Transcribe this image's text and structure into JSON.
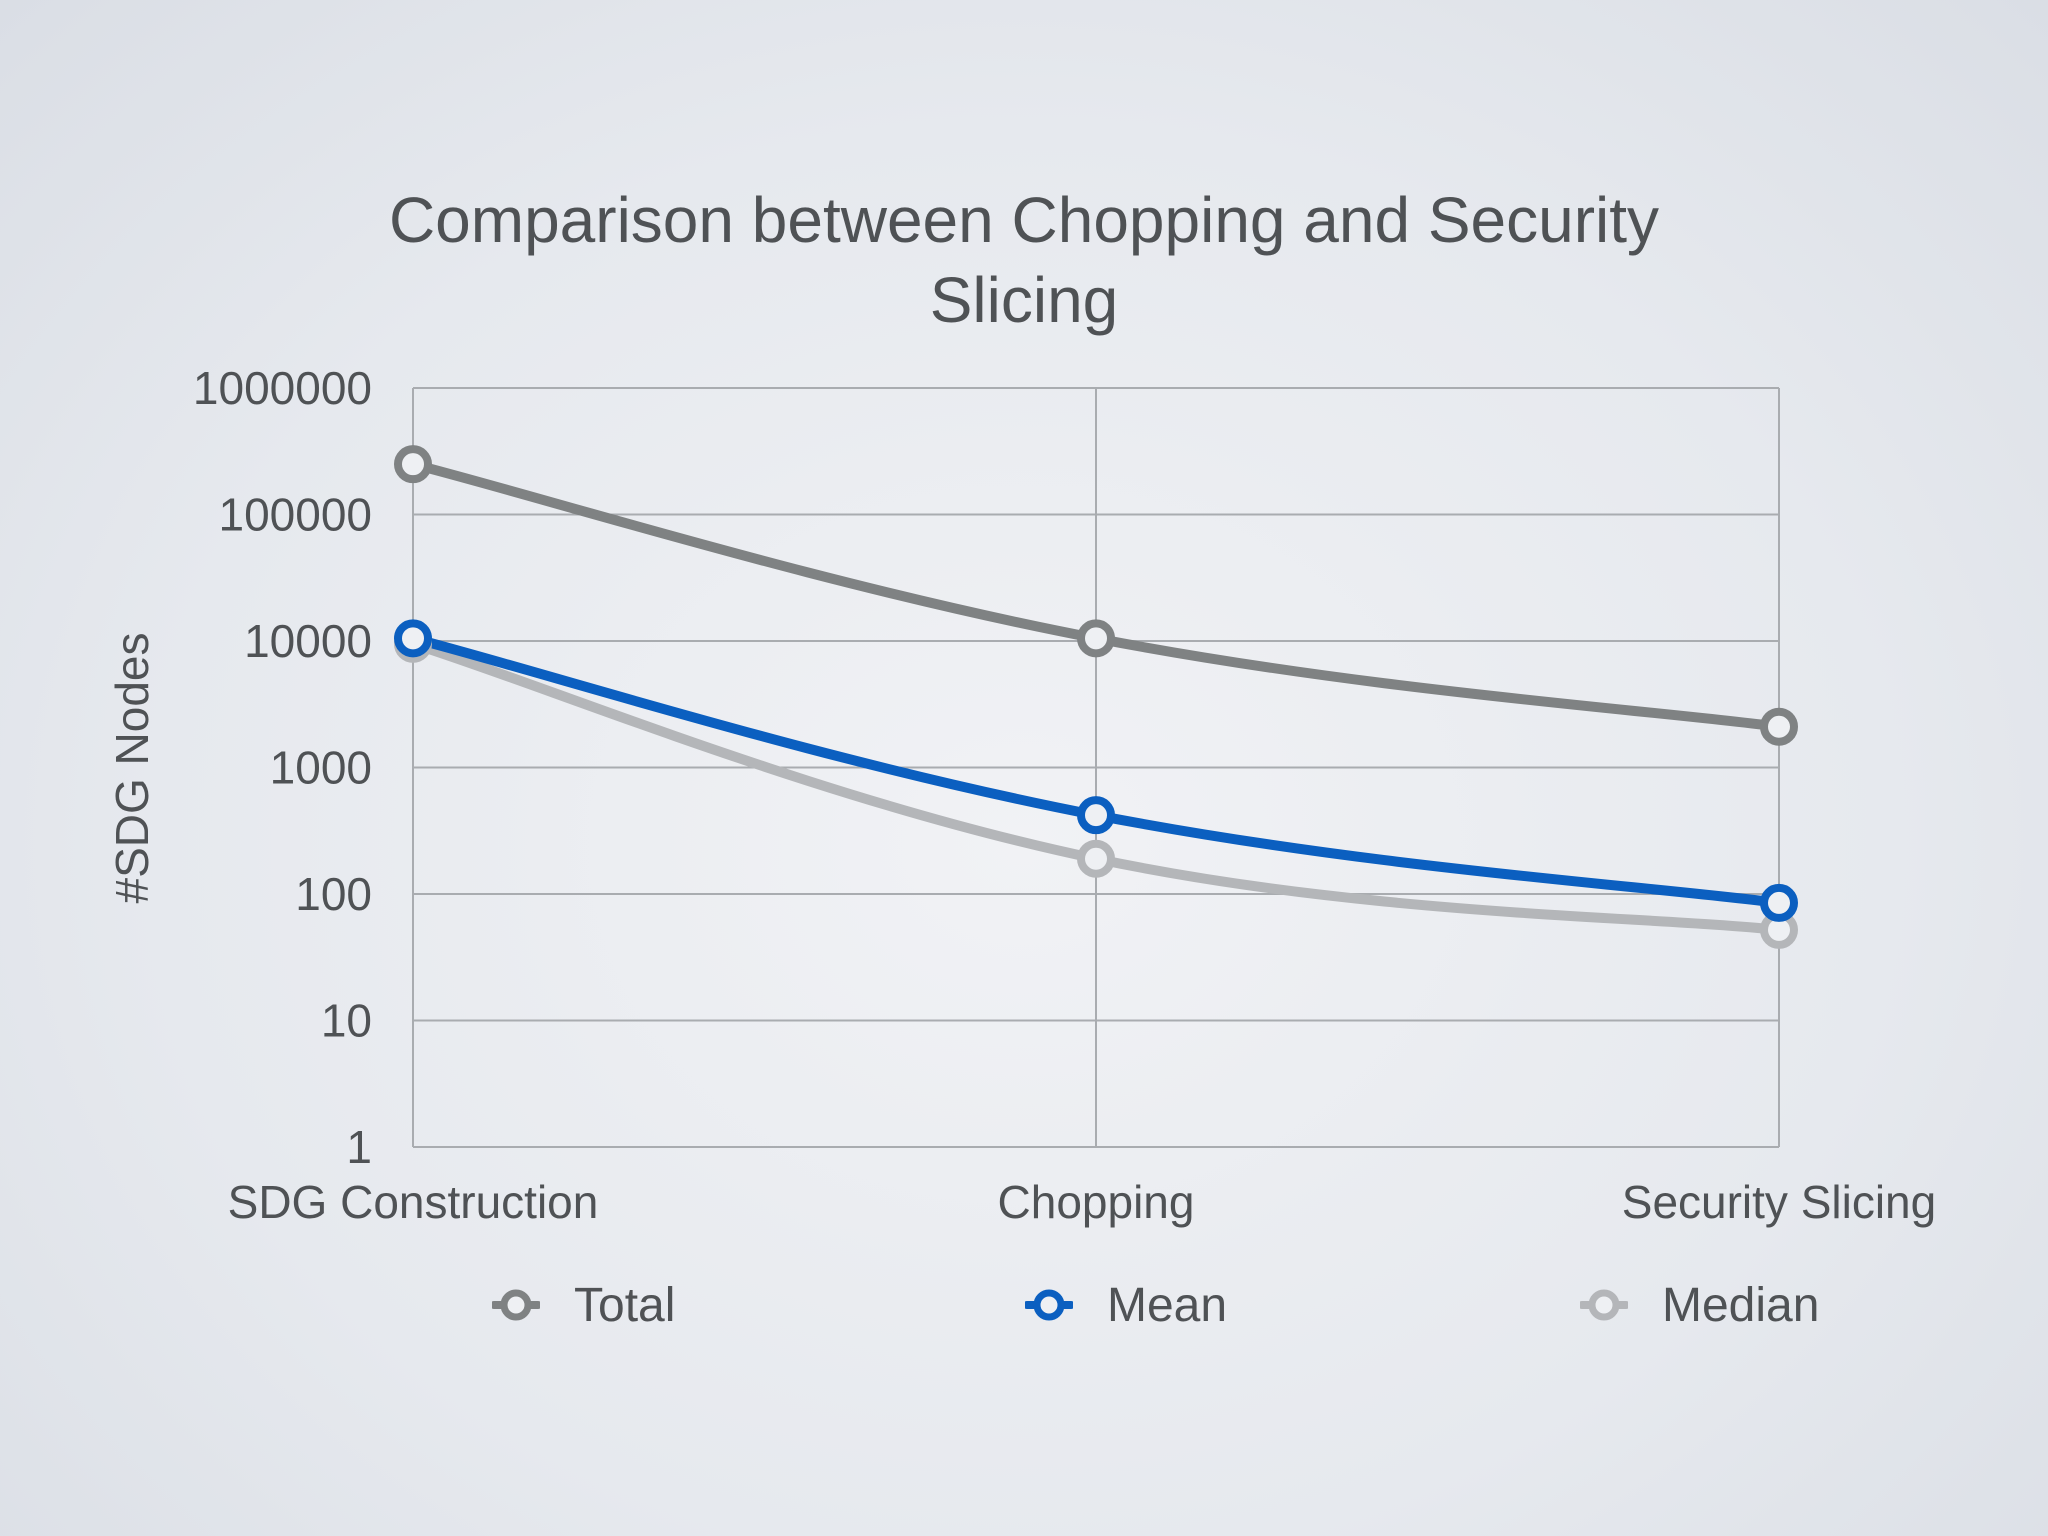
{
  "chart_data": {
    "type": "line",
    "title_lines": [
      "Comparison between Chopping and Security",
      "Slicing"
    ],
    "ylabel": "#SDG Nodes",
    "xlabel": "",
    "y_scale": "log",
    "ylim": [
      1,
      1000000
    ],
    "y_ticks": [
      "1",
      "10",
      "100",
      "1000",
      "10000",
      "100000",
      "1000000"
    ],
    "categories": [
      "SDG Construction",
      "Chopping",
      "Security Slicing"
    ],
    "grid": true,
    "legend_position": "bottom",
    "series": [
      {
        "name": "Total",
        "color": "#7f8283",
        "values": [
          250000,
          10500,
          2100
        ]
      },
      {
        "name": "Mean",
        "color": "#0b5fc0",
        "values": [
          10500,
          420,
          85
        ]
      },
      {
        "name": "Median",
        "color": "#b4b6b9",
        "values": [
          9500,
          190,
          52
        ]
      }
    ]
  }
}
